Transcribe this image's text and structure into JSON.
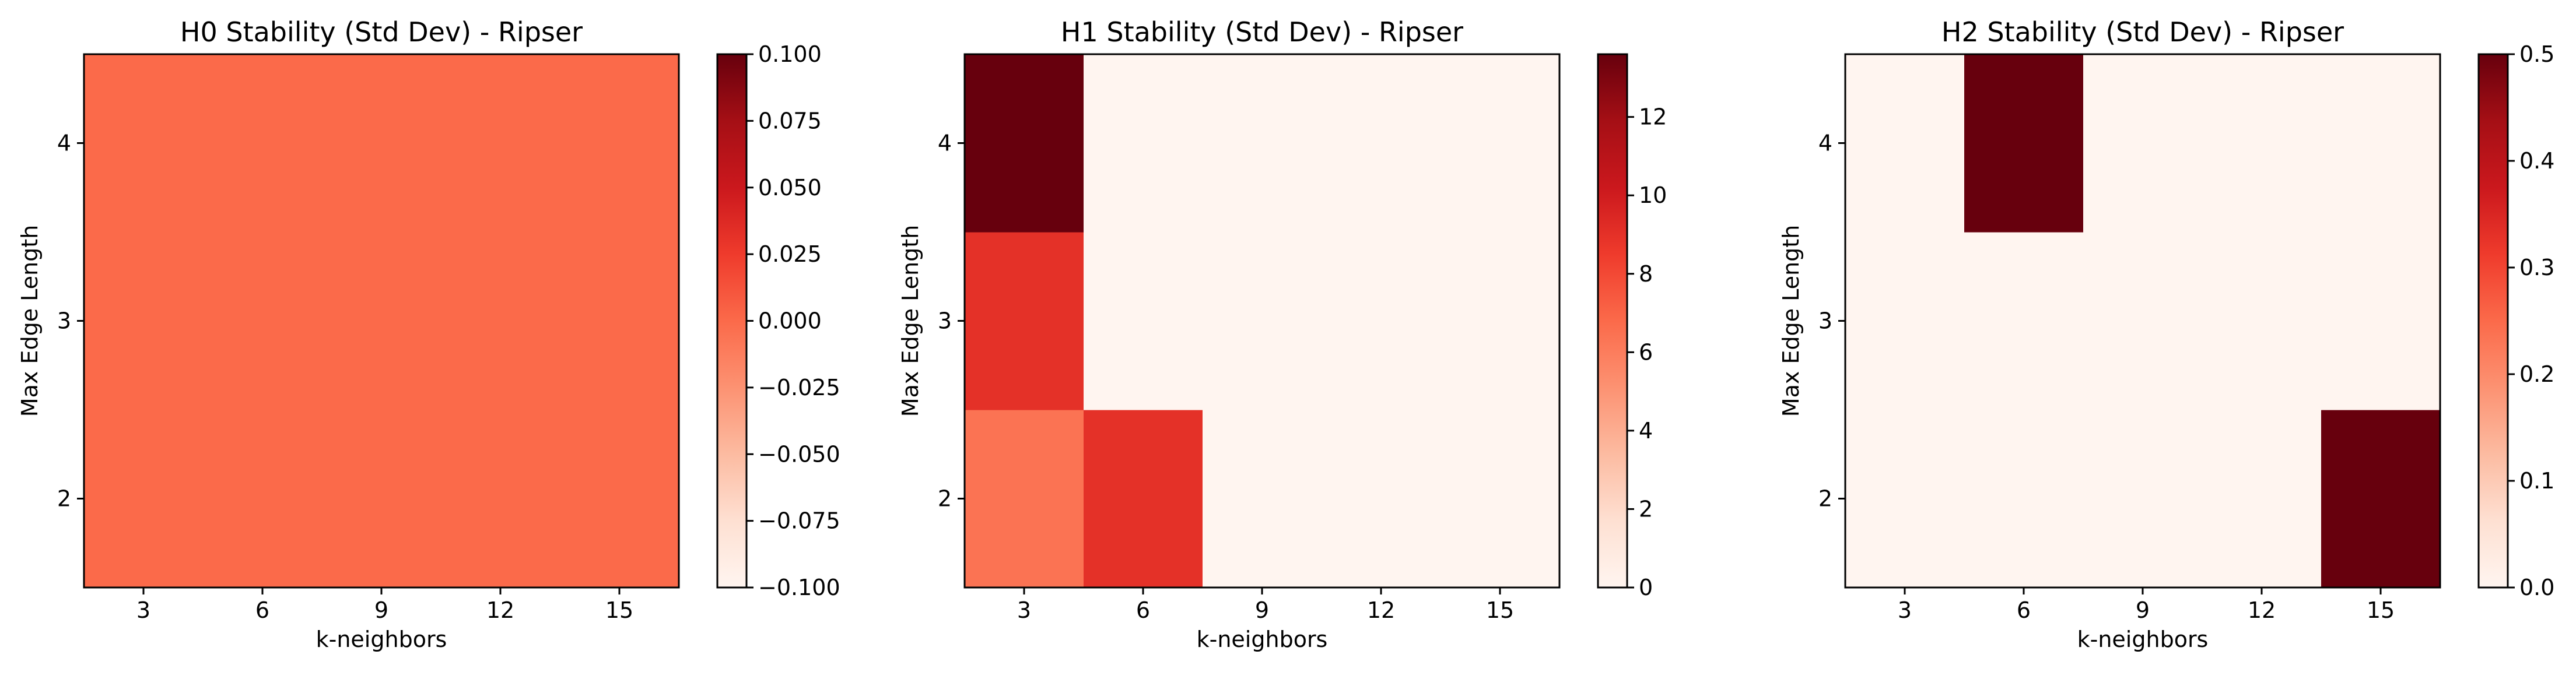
{
  "chart_data": [
    {
      "type": "heatmap",
      "title": "H0 Stability (Std Dev) - Ripser",
      "xlabel": "k-neighbors",
      "ylabel": "Max Edge Length",
      "x": [
        3,
        6,
        9,
        12,
        15
      ],
      "y": [
        2,
        3,
        4
      ],
      "x_categories": [
        "3",
        "6",
        "9",
        "12",
        "15"
      ],
      "y_ticks": [
        2,
        3,
        4
      ],
      "y_tick_labels": [
        "2",
        "3",
        "4"
      ],
      "values": [
        [
          0,
          0,
          0,
          0,
          0
        ],
        [
          0,
          0,
          0,
          0,
          0
        ],
        [
          0,
          0,
          0,
          0,
          0
        ]
      ],
      "colormap": "Reds",
      "colorbar": {
        "range": [
          -0.1,
          0.1
        ],
        "ticks": [
          -0.1,
          -0.075,
          -0.05,
          -0.025,
          0.0,
          0.025,
          0.05,
          0.075,
          0.1
        ],
        "tick_labels": [
          "−0.100",
          "−0.075",
          "−0.050",
          "−0.025",
          "0.000",
          "0.025",
          "0.050",
          "0.075",
          "0.100"
        ]
      },
      "grid": false
    },
    {
      "type": "heatmap",
      "title": "H1 Stability (Std Dev) - Ripser",
      "xlabel": "k-neighbors",
      "ylabel": "Max Edge Length",
      "x": [
        3,
        6,
        9,
        12,
        15
      ],
      "y": [
        2,
        3,
        4
      ],
      "x_categories": [
        "3",
        "6",
        "9",
        "12",
        "15"
      ],
      "y_ticks": [
        2,
        3,
        4
      ],
      "y_tick_labels": [
        "2",
        "3",
        "4"
      ],
      "values": [
        [
          6.4,
          9.0,
          0,
          0,
          0
        ],
        [
          9.0,
          0,
          0,
          0,
          0
        ],
        [
          13.6,
          0,
          0,
          0,
          0
        ]
      ],
      "colormap": "Reds",
      "colorbar": {
        "range": [
          0,
          13.6
        ],
        "ticks": [
          0,
          2,
          4,
          6,
          8,
          10,
          12
        ],
        "tick_labels": [
          "0",
          "2",
          "4",
          "6",
          "8",
          "10",
          "12"
        ]
      },
      "grid": false
    },
    {
      "type": "heatmap",
      "title": "H2 Stability (Std Dev) - Ripser",
      "xlabel": "k-neighbors",
      "ylabel": "Max Edge Length",
      "x": [
        3,
        6,
        9,
        12,
        15
      ],
      "y": [
        2,
        3,
        4
      ],
      "x_categories": [
        "3",
        "6",
        "9",
        "12",
        "15"
      ],
      "y_ticks": [
        2,
        3,
        4
      ],
      "y_tick_labels": [
        "2",
        "3",
        "4"
      ],
      "values": [
        [
          0,
          0,
          0,
          0,
          0.5
        ],
        [
          0,
          0,
          0,
          0,
          0
        ],
        [
          0,
          0.5,
          0,
          0,
          0
        ]
      ],
      "colormap": "Reds",
      "colorbar": {
        "range": [
          0,
          0.5
        ],
        "ticks": [
          0,
          0.1,
          0.2,
          0.3,
          0.4,
          0.5
        ],
        "tick_labels": [
          "0.0",
          "0.1",
          "0.2",
          "0.3",
          "0.4",
          "0.5"
        ]
      },
      "grid": false
    }
  ]
}
